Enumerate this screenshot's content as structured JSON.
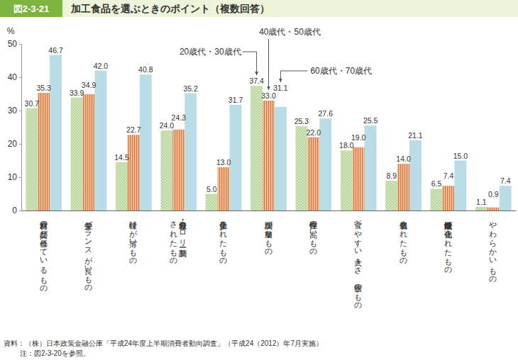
{
  "chart_data": {
    "type": "bar",
    "figure_label": "図2-3-21",
    "title": "加工食品を選ぶときのポイント（複数回答）",
    "y_label": "%",
    "categories": [
      "原材料の品質が優れているもの",
      "栄養バランスが良いもの",
      "味付けが薄いもの",
      "塩分・糖分・カロリー調整\nされたもの",
      "少量化されたもの",
      "調理が簡単なもの",
      "保存性の高いもの",
      "食べやすい大きさ、形状のもの",
      "個包装されたもの",
      "健康機能性が強化されたもの",
      "やわらかいもの"
    ],
    "series": [
      {
        "name": "20歳代・30歳代",
        "color": "#d3e6bd",
        "values": [
          30.7,
          33.9,
          14.5,
          24.0,
          5.0,
          37.4,
          25.3,
          18.0,
          8.9,
          6.5,
          1.1
        ],
        "value_labels": [
          "30.7",
          "33.9",
          "14.5",
          "24.0",
          "5.0",
          "37.4",
          "25.3",
          "18.0",
          "8.9",
          "6.5",
          "1.1"
        ]
      },
      {
        "name": "40歳代・50歳代",
        "color": "#f3bf98",
        "values": [
          35.3,
          34.9,
          22.7,
          24.3,
          13.0,
          33.0,
          22.0,
          19.0,
          14.0,
          7.4,
          0.9
        ],
        "value_labels": [
          "35.3",
          "34.9",
          "22.7",
          "24.3",
          "13.0",
          "33.0",
          "22.0",
          "19.0",
          "14.0",
          "7.4",
          "0.9"
        ]
      },
      {
        "name": "60歳代・70歳代",
        "color": "#b9dce6",
        "values": [
          46.7,
          42.0,
          40.8,
          35.2,
          31.7,
          31.1,
          27.6,
          25.5,
          21.1,
          15.0,
          7.4
        ],
        "value_labels": [
          "46.7",
          "42.0",
          "40.8",
          "35.2",
          "31.7",
          "31.1",
          "27.6",
          "25.5",
          "21.1",
          "15.0",
          "7.4"
        ]
      }
    ],
    "ylim": [
      0,
      50
    ],
    "yticks": [
      0,
      10,
      20,
      30,
      40,
      50
    ],
    "grid": false,
    "data_labels": true,
    "source": "資料：（株）日本政策金融公庫「平成24年度上半期消費者動向調査」（平成24（2012）年7月実施）",
    "note": "注：図2-3-20を参照。"
  }
}
